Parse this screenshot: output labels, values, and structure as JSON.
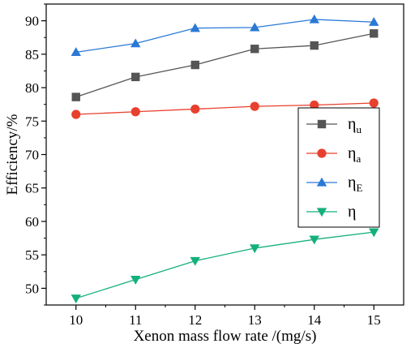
{
  "chart_data": {
    "type": "line",
    "title": "",
    "xlabel": "Xenon mass flow rate /(mg/s)",
    "ylabel": "Efficiency/%",
    "x": [
      10,
      11,
      12,
      13,
      14,
      15
    ],
    "xlim": [
      9.5,
      15.5
    ],
    "ylim": [
      47.5,
      92.5
    ],
    "x_ticks": [
      "10",
      "11",
      "12",
      "13",
      "14",
      "15"
    ],
    "y_ticks": [
      "50",
      "55",
      "60",
      "65",
      "70",
      "75",
      "80",
      "85",
      "90"
    ],
    "grid": false,
    "legend_position": "right",
    "series": [
      {
        "name": "η",
        "subscript": "u",
        "color": "#555555",
        "marker": "square",
        "values": [
          78.6,
          81.6,
          83.4,
          85.8,
          86.3,
          88.1
        ]
      },
      {
        "name": "η",
        "subscript": "a",
        "color": "#e8402e",
        "marker": "circle",
        "values": [
          76.0,
          76.4,
          76.8,
          77.2,
          77.4,
          77.7
        ]
      },
      {
        "name": "η",
        "subscript": "E",
        "color": "#2a79d6",
        "marker": "triangle-up",
        "values": [
          85.3,
          86.6,
          88.9,
          89.0,
          90.2,
          89.8
        ]
      },
      {
        "name": "η",
        "subscript": "",
        "color": "#14b07a",
        "marker": "triangle-down",
        "values": [
          48.5,
          51.3,
          54.1,
          56.0,
          57.3,
          58.4
        ]
      }
    ]
  }
}
